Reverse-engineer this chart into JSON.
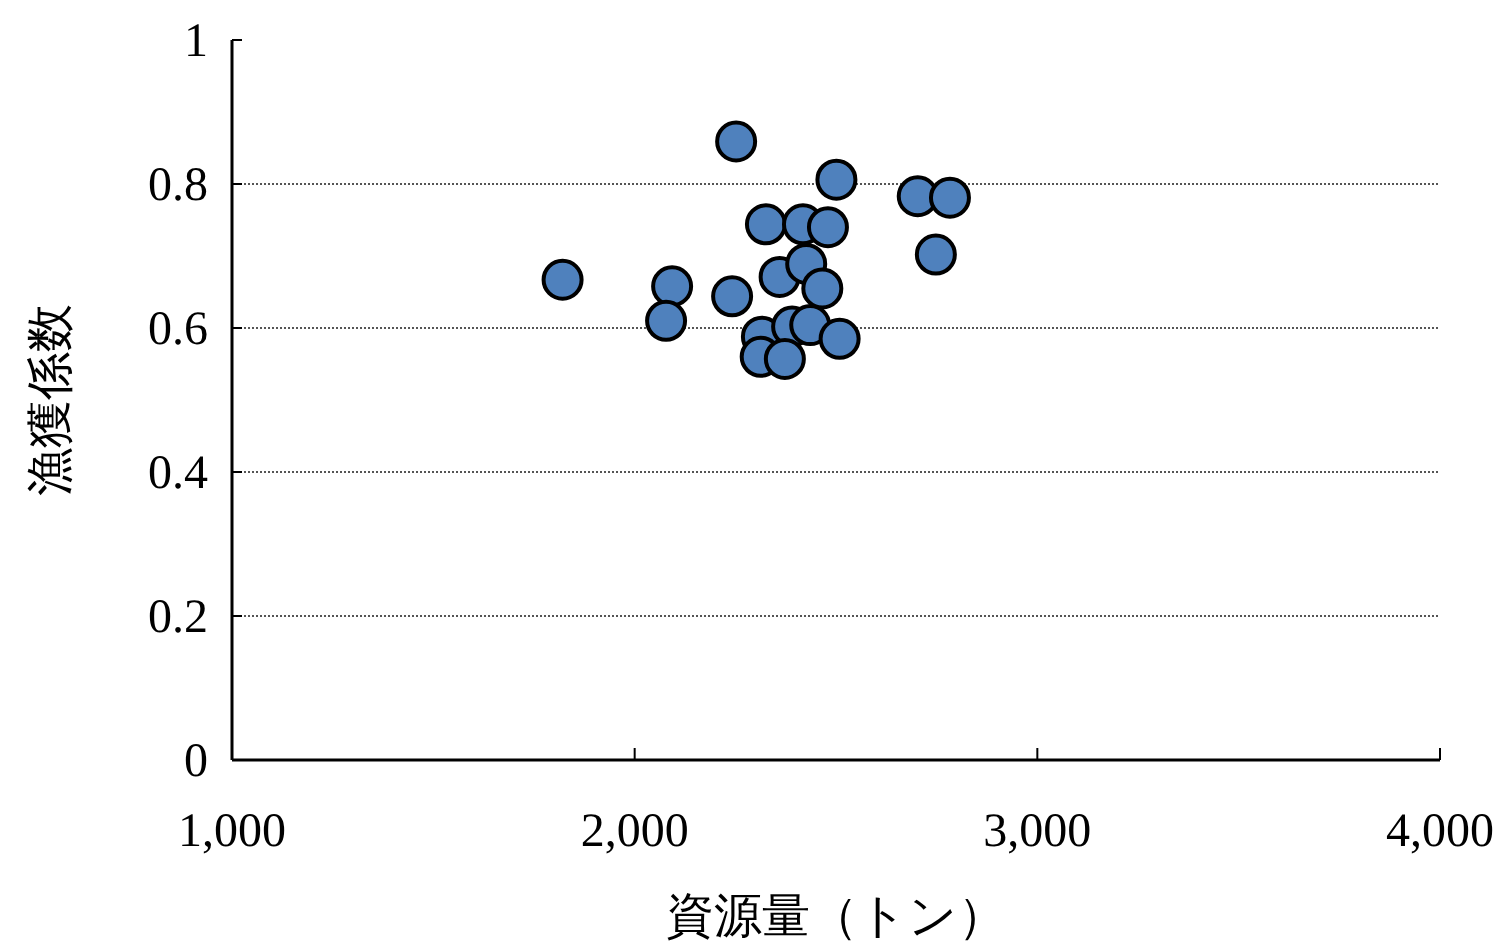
{
  "chart_data": {
    "type": "scatter",
    "xlabel": "資源量（トン）",
    "ylabel": "漁獲係数",
    "color": "#4f81bd",
    "marker": "circle",
    "grid": "y",
    "xlim": [
      1000,
      4000
    ],
    "xticks": [
      {
        "value": 1000,
        "label": "1,000"
      },
      {
        "value": 2000,
        "label": "2,000"
      },
      {
        "value": 3000,
        "label": "3,000"
      },
      {
        "value": 4000,
        "label": "4,000"
      }
    ],
    "ylim": [
      0,
      1
    ],
    "yticks": [
      0,
      0.2,
      0.4,
      0.6,
      0.8,
      1
    ],
    "x": [
      1821,
      2093,
      2078,
      2242,
      2252,
      2501,
      2326,
      2418,
      2480,
      2360,
      2426,
      2466,
      2703,
      2783,
      2748,
      2316,
      2391,
      2436,
      2509,
      2313,
      2373
    ],
    "values": [
      0.667,
      0.658,
      0.61,
      0.644,
      0.859,
      0.806,
      0.744,
      0.744,
      0.74,
      0.671,
      0.689,
      0.655,
      0.783,
      0.781,
      0.702,
      0.588,
      0.602,
      0.604,
      0.585,
      0.56,
      0.557
    ]
  }
}
